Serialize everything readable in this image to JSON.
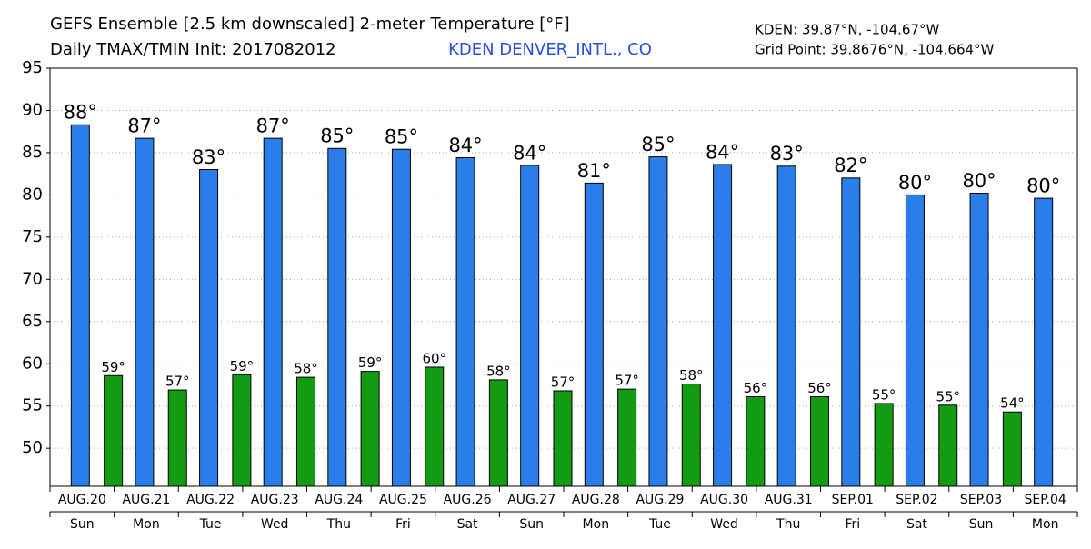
{
  "chart_data": {
    "type": "bar",
    "title": "GEFS Ensemble [2.5 km downscaled] 2-meter Temperature [°F]",
    "subtitle": "Daily TMAX/TMIN Init: 2017082012",
    "station": "KDEN DENVER_INTL., CO",
    "location_lines": [
      "KDEN: 39.87°N, -104.67°W",
      "Grid Point: 39.8676°N, -104.664°W"
    ],
    "categories": [
      "AUG.20",
      "AUG.21",
      "AUG.22",
      "AUG.23",
      "AUG.24",
      "AUG.25",
      "AUG.26",
      "AUG.27",
      "AUG.28",
      "AUG.29",
      "AUG.30",
      "AUG.31",
      "SEP.01",
      "SEP.02",
      "SEP.03",
      "SEP.04"
    ],
    "weekdays": [
      "Sun",
      "Mon",
      "Tue",
      "Wed",
      "Thu",
      "Fri",
      "Sat",
      "Sun",
      "Mon",
      "Tue",
      "Wed",
      "Thu",
      "Fri",
      "Sat",
      "Sun",
      "Mon"
    ],
    "series": [
      {
        "name": "TMAX",
        "color": "#2b7de9",
        "values": [
          88.3,
          86.7,
          83.0,
          86.7,
          85.5,
          85.4,
          84.4,
          83.5,
          81.4,
          84.5,
          83.6,
          83.4,
          82.0,
          80.0,
          80.2,
          79.6
        ],
        "value_labels": [
          "88°",
          "87°",
          "83°",
          "87°",
          "85°",
          "85°",
          "84°",
          "84°",
          "81°",
          "85°",
          "84°",
          "83°",
          "82°",
          "80°",
          "80°",
          "80°"
        ]
      },
      {
        "name": "TMIN",
        "color": "#139c13",
        "values": [
          58.6,
          56.9,
          58.7,
          58.4,
          59.1,
          59.6,
          58.1,
          56.8,
          57.0,
          57.6,
          56.1,
          56.1,
          55.3,
          55.1,
          54.3,
          null
        ],
        "value_labels": [
          "59°",
          "57°",
          "59°",
          "58°",
          "59°",
          "60°",
          "58°",
          "57°",
          "57°",
          "58°",
          "56°",
          "56°",
          "55°",
          "55°",
          "54°",
          null
        ]
      }
    ],
    "ylim": [
      45.5,
      95
    ],
    "yticks": [
      50,
      55,
      60,
      65,
      70,
      75,
      80,
      85,
      90,
      95
    ],
    "grid": true
  }
}
